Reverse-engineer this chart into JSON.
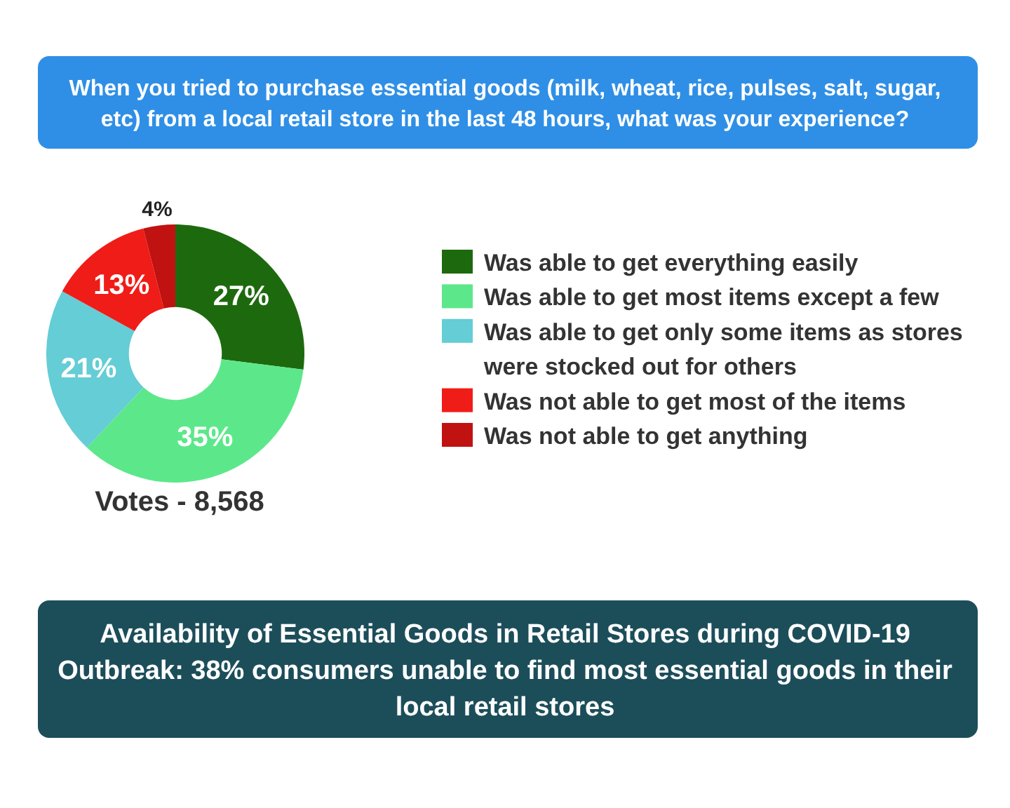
{
  "chart_data": {
    "type": "donut",
    "title": "When you tried to purchase essential goods (milk, wheat, rice, pulses, salt, sugar, etc) from a local retail store in the last 48 hours, what was your experience?",
    "categories": [
      "Was able to get everything easily",
      "Was able to get most items except a few",
      "Was able to get only some items as stores were stocked out for others",
      "Was not able to get most of the items",
      "Was not able to get anything"
    ],
    "values": [
      27,
      35,
      21,
      13,
      4
    ],
    "colors": [
      "#1d6a0e",
      "#5ce88a",
      "#64cdd5",
      "#f01c18",
      "#c01210"
    ],
    "value_labels": [
      "27%",
      "35%",
      "21%",
      "13%",
      "4%"
    ],
    "legend": "right",
    "annotations": [
      "Votes - 8,568",
      "Availability of Essential Goods in Retail Stores during COVID-19 Outbreak: 38% consumers unable to find most essential goods in their local retail stores"
    ]
  }
}
